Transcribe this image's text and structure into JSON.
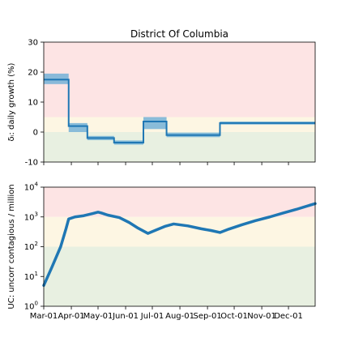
{
  "chart_data": [
    {
      "type": "line",
      "title": "District Of Columbia",
      "ylabel": "δᵢ: daily growth (%)",
      "ylim": [
        -10,
        30
      ],
      "yticks": [
        "30",
        "20",
        "10",
        "0",
        "-10"
      ],
      "ytick_values": [
        30,
        20,
        10,
        0,
        -10
      ],
      "zones": [
        {
          "from": 5,
          "to": 30,
          "color": "#fde4e4"
        },
        {
          "from": 0,
          "to": 5,
          "color": "#fdf6e3"
        },
        {
          "from": -10,
          "to": 0,
          "color": "#e8f0e1"
        }
      ],
      "series": [
        {
          "color": "#1f77b4",
          "band_color": "#6baed6",
          "segments": [
            {
              "x_start": "2020-03-01",
              "x_end": "2020-03-29",
              "value": 17.5,
              "low": 16,
              "high": 19.5
            },
            {
              "x_start": "2020-03-29",
              "x_end": "2020-04-19",
              "value": 2,
              "low": 0,
              "high": 3
            },
            {
              "x_start": "2020-04-19",
              "x_end": "2020-05-19",
              "value": -2,
              "low": -2.7,
              "high": -1.3
            },
            {
              "x_start": "2020-05-19",
              "x_end": "2020-06-21",
              "value": -3.5,
              "low": -4.2,
              "high": -2.8
            },
            {
              "x_start": "2020-06-21",
              "x_end": "2020-07-17",
              "value": 3.5,
              "low": 1,
              "high": 5
            },
            {
              "x_start": "2020-07-17",
              "x_end": "2020-09-15",
              "value": -1,
              "low": -1.7,
              "high": -0.2
            },
            {
              "x_start": "2020-09-15",
              "x_end": "2020-12-31",
              "value": 3,
              "low": 2.5,
              "high": 3.5
            }
          ]
        }
      ]
    },
    {
      "type": "line",
      "ylabel": "UC: uncorr contagious / million",
      "ylim": [
        1,
        10000
      ],
      "yscale": "log",
      "yticks": [
        {
          "base": "10",
          "exp": "4",
          "value": 10000
        },
        {
          "base": "10",
          "exp": "3",
          "value": 1000
        },
        {
          "base": "10",
          "exp": "2",
          "value": 100
        },
        {
          "base": "10",
          "exp": "1",
          "value": 10
        },
        {
          "base": "10",
          "exp": "0",
          "value": 1
        }
      ],
      "zones": [
        {
          "from": 1000,
          "to": 10000,
          "color": "#fde4e4"
        },
        {
          "from": 100,
          "to": 1000,
          "color": "#fdf6e3"
        },
        {
          "from": 1,
          "to": 100,
          "color": "#e8f0e1"
        }
      ],
      "series": [
        {
          "color": "#1f77b4",
          "x": [
            "2020-03-01",
            "2020-03-10",
            "2020-03-20",
            "2020-03-26",
            "2020-03-29",
            "2020-04-05",
            "2020-04-15",
            "2020-04-25",
            "2020-05-01",
            "2020-05-05",
            "2020-05-12",
            "2020-05-25",
            "2020-06-05",
            "2020-06-15",
            "2020-06-26",
            "2020-07-05",
            "2020-07-15",
            "2020-07-25",
            "2020-08-10",
            "2020-08-25",
            "2020-09-05",
            "2020-09-15",
            "2020-09-25",
            "2020-10-10",
            "2020-10-25",
            "2020-11-10",
            "2020-11-25",
            "2020-12-10",
            "2020-12-31"
          ],
          "values": [
            5,
            20,
            100,
            400,
            850,
            1000,
            1100,
            1300,
            1450,
            1350,
            1150,
            950,
            650,
            420,
            280,
            360,
            480,
            580,
            500,
            400,
            350,
            300,
            390,
            550,
            750,
            1000,
            1350,
            1800,
            2800
          ]
        }
      ],
      "categories": [
        "Mar-01",
        "Apr-01",
        "May-01",
        "Jun-01",
        "Jul-01",
        "Aug-01",
        "Sep-01",
        "Oct-01",
        "Nov-01",
        "Dec-01"
      ],
      "category_dates": [
        "2020-03-01",
        "2020-04-01",
        "2020-05-01",
        "2020-06-01",
        "2020-07-01",
        "2020-08-01",
        "2020-09-01",
        "2020-10-01",
        "2020-11-01",
        "2020-12-01"
      ],
      "xlim": [
        "2020-03-01",
        "2020-12-31"
      ]
    }
  ]
}
